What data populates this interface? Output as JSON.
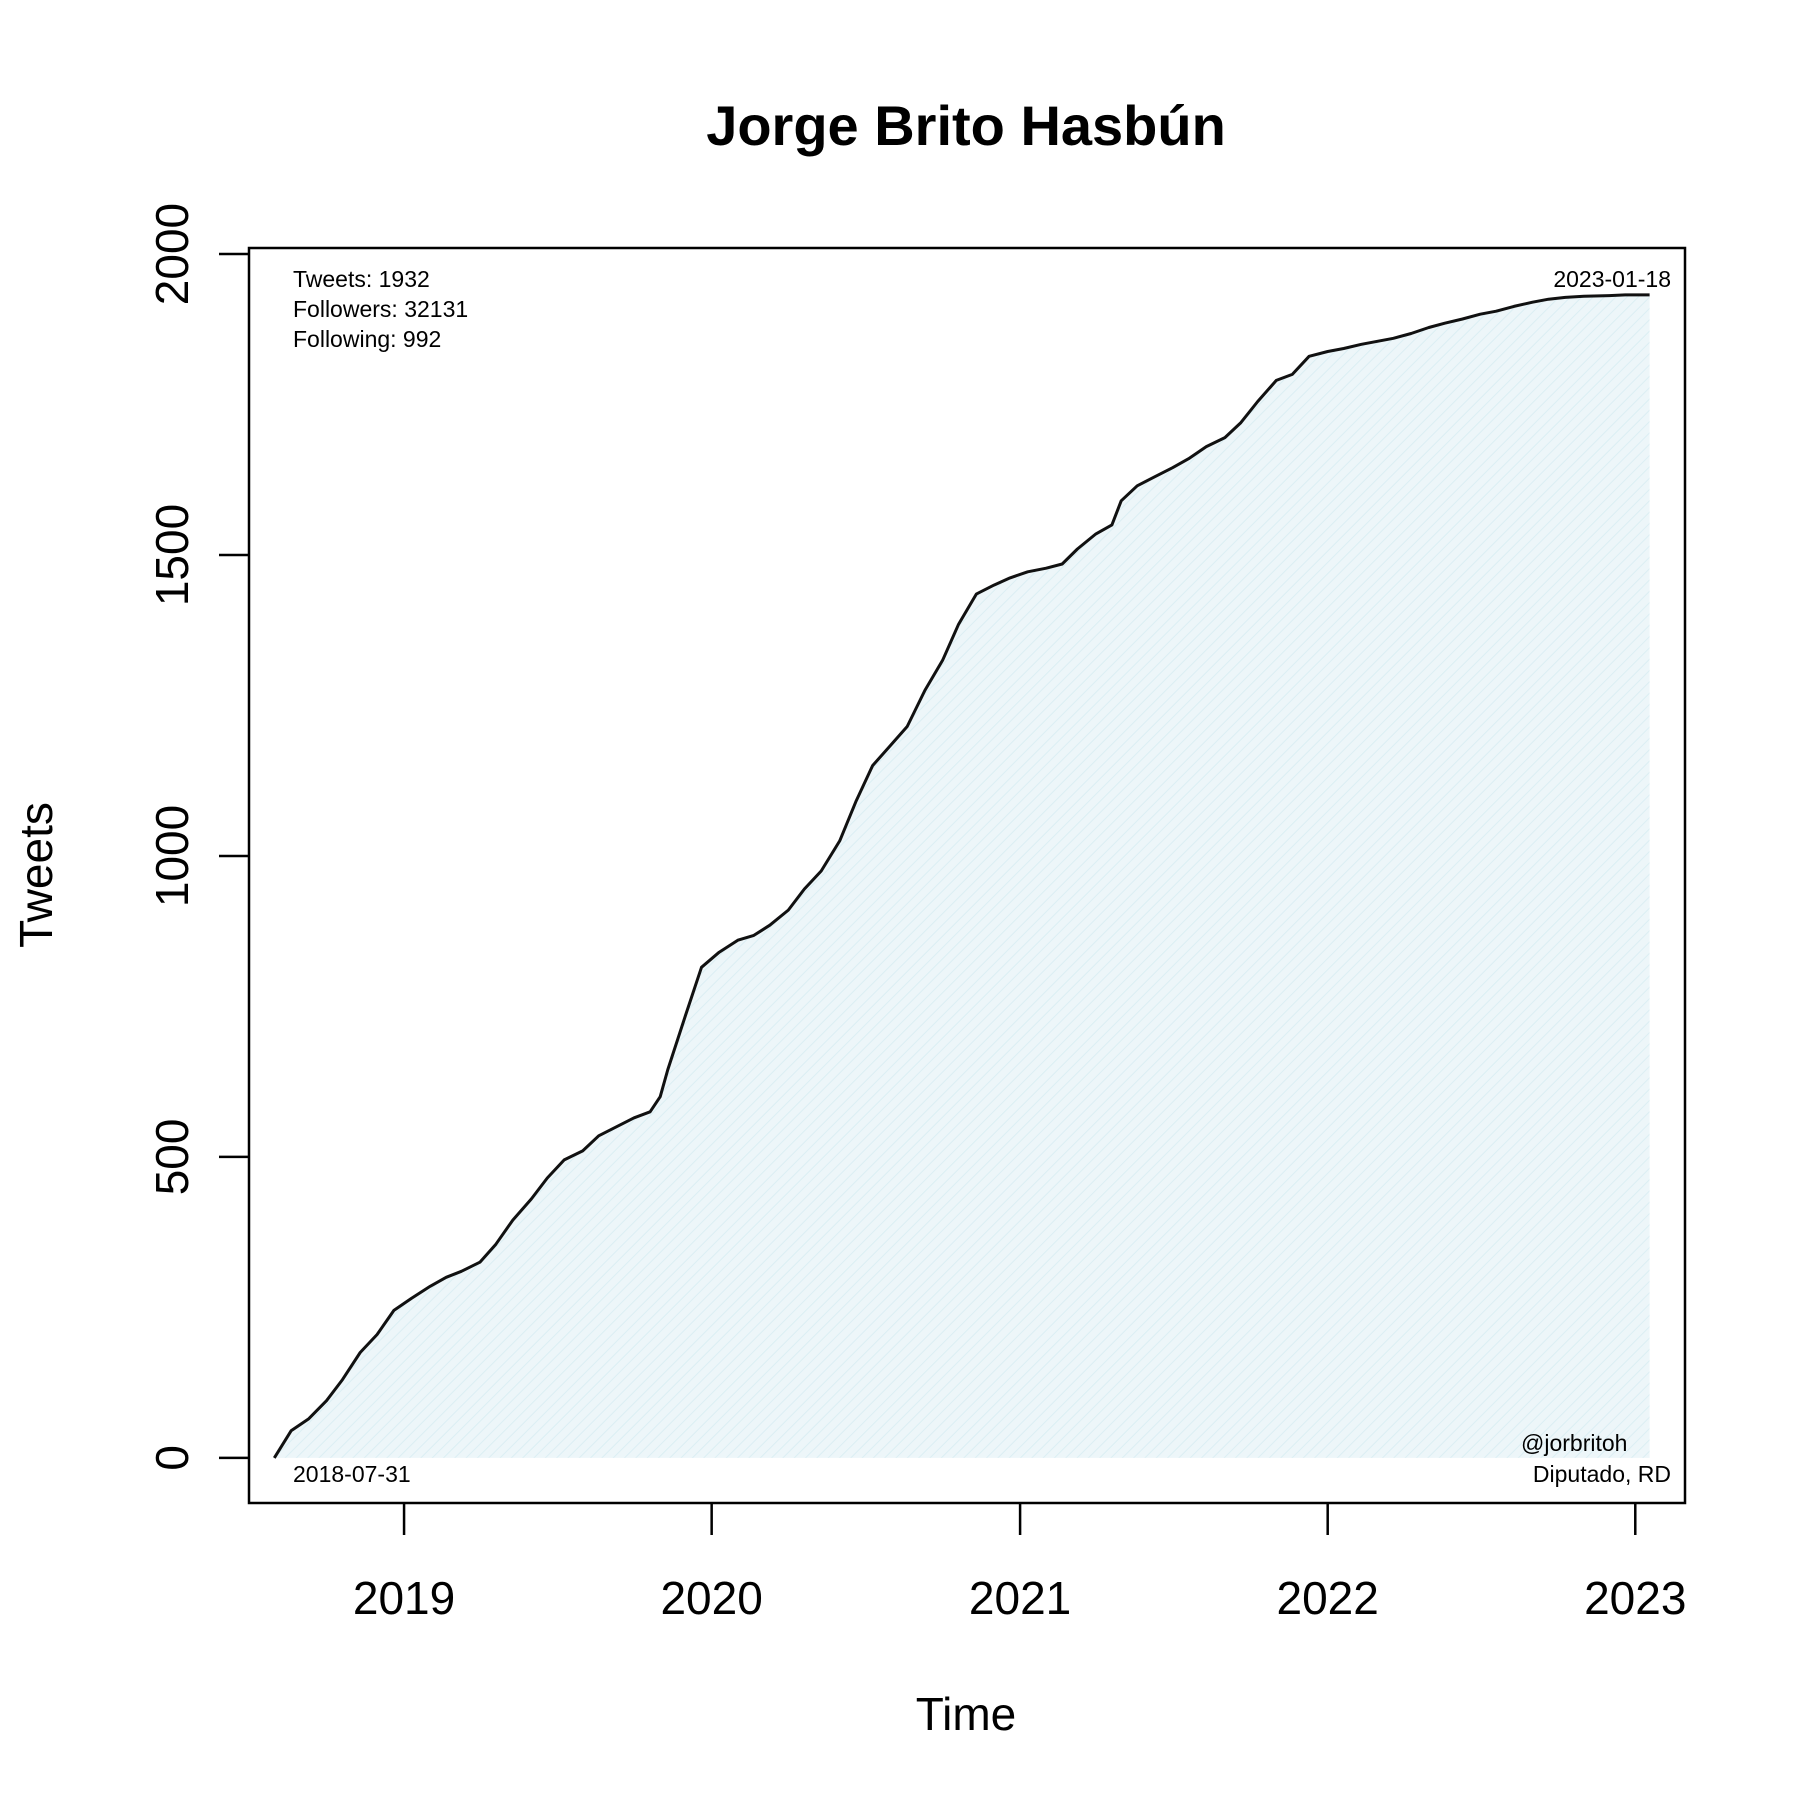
{
  "chart_data": {
    "type": "area",
    "title": "Jorge Brito Hasbún",
    "xlabel": "Time",
    "ylabel": "Tweets",
    "x_ticks": [
      "2019",
      "2020",
      "2021",
      "2022",
      "2023"
    ],
    "y_ticks": [
      "0",
      "500",
      "1000",
      "1500",
      "2000"
    ],
    "xlim": [
      "2018-07-01",
      "2023-03-01"
    ],
    "ylim": [
      -75,
      2010
    ],
    "grid": false,
    "fill_color": "#e6f3f7",
    "line_color": "#111111",
    "annotations": {
      "stats": [
        "Tweets: 1932",
        "Followers: 32131",
        "Following: 992"
      ],
      "start_date": "2018-07-31",
      "end_date": "2023-01-18",
      "handle": "@jorbritoh",
      "role": "Diputado, RD"
    },
    "series": [
      {
        "x": [
          "2018-07-31",
          "2018-08-20",
          "2018-09-10",
          "2018-10-01",
          "2018-10-20",
          "2018-11-10",
          "2018-11-30",
          "2018-12-20",
          "2019-01-10",
          "2019-02-01",
          "2019-02-20",
          "2019-03-10",
          "2019-04-01",
          "2019-04-20",
          "2019-05-10",
          "2019-06-01",
          "2019-06-20",
          "2019-07-10",
          "2019-08-01",
          "2019-08-20",
          "2019-09-10",
          "2019-10-01",
          "2019-10-20",
          "2019-11-01",
          "2019-11-10",
          "2019-12-01",
          "2019-12-20",
          "2020-01-10",
          "2020-02-01",
          "2020-02-20",
          "2020-03-10",
          "2020-04-01",
          "2020-04-20",
          "2020-05-10",
          "2020-06-01",
          "2020-06-20",
          "2020-07-10",
          "2020-08-01",
          "2020-08-20",
          "2020-09-10",
          "2020-10-01",
          "2020-10-20",
          "2020-11-10",
          "2020-12-01",
          "2020-12-20",
          "2021-01-10",
          "2021-02-01",
          "2021-02-20",
          "2021-03-10",
          "2021-04-01",
          "2021-04-20",
          "2021-05-01",
          "2021-05-20",
          "2021-06-10",
          "2021-07-01",
          "2021-07-20",
          "2021-08-10",
          "2021-09-01",
          "2021-09-20",
          "2021-10-10",
          "2021-11-01",
          "2021-11-20",
          "2021-12-10",
          "2022-01-01",
          "2022-01-20",
          "2022-02-10",
          "2022-03-01",
          "2022-03-20",
          "2022-04-10",
          "2022-05-01",
          "2022-05-20",
          "2022-06-10",
          "2022-07-01",
          "2022-07-20",
          "2022-08-10",
          "2022-09-01",
          "2022-09-20",
          "2022-10-10",
          "2022-11-01",
          "2022-12-01",
          "2022-12-20",
          "2023-01-18"
        ],
        "values": [
          0,
          45,
          65,
          95,
          130,
          175,
          205,
          245,
          265,
          285,
          300,
          310,
          325,
          355,
          395,
          430,
          465,
          495,
          510,
          535,
          550,
          565,
          575,
          600,
          645,
          735,
          815,
          840,
          860,
          868,
          885,
          910,
          945,
          975,
          1025,
          1090,
          1150,
          1185,
          1215,
          1275,
          1325,
          1385,
          1435,
          1450,
          1462,
          1472,
          1478,
          1485,
          1510,
          1535,
          1550,
          1590,
          1615,
          1630,
          1645,
          1660,
          1680,
          1695,
          1720,
          1755,
          1790,
          1800,
          1830,
          1838,
          1843,
          1850,
          1855,
          1860,
          1868,
          1878,
          1885,
          1892,
          1900,
          1905,
          1913,
          1920,
          1925,
          1928,
          1930,
          1931,
          1932,
          1932
        ]
      }
    ]
  }
}
